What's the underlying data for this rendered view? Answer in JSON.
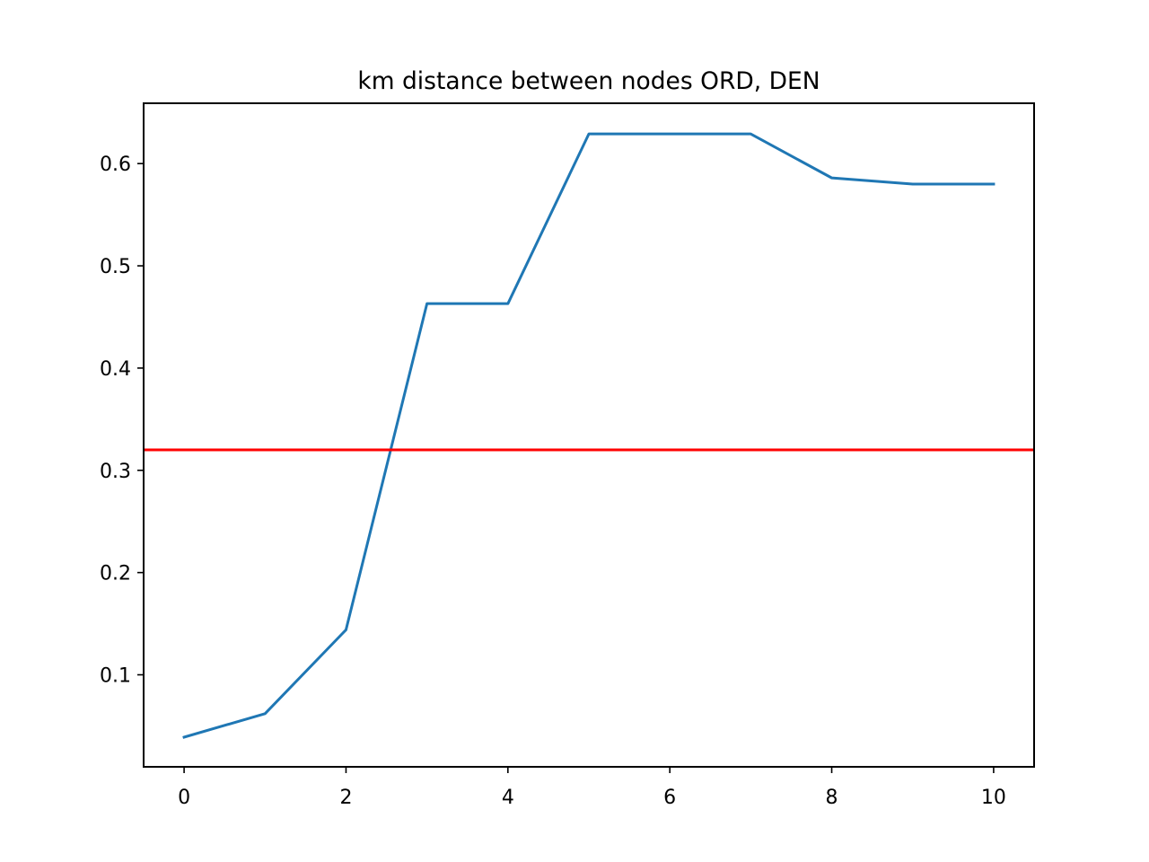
{
  "chart_data": {
    "type": "line",
    "title": "km distance between nodes ORD, DEN",
    "xlabel": "",
    "ylabel": "",
    "xlim": [
      -0.5,
      10.5
    ],
    "ylim": [
      0.01,
      0.659
    ],
    "x_ticks": [
      0,
      2,
      4,
      6,
      8,
      10
    ],
    "x_tick_labels": [
      "0",
      "2",
      "4",
      "6",
      "8",
      "10"
    ],
    "y_ticks": [
      0.1,
      0.2,
      0.3,
      0.4,
      0.5,
      0.6
    ],
    "y_tick_labels": [
      "0.1",
      "0.2",
      "0.3",
      "0.4",
      "0.5",
      "0.6"
    ],
    "grid": false,
    "legend": "none",
    "series": [
      {
        "color": "#1f77b4",
        "x": [
          0,
          1,
          2,
          3,
          4,
          5,
          6,
          7,
          8,
          9,
          10
        ],
        "y": [
          0.039,
          0.062,
          0.144,
          0.463,
          0.463,
          0.629,
          0.629,
          0.629,
          0.586,
          0.58,
          0.58
        ]
      }
    ],
    "reference_lines": [
      {
        "orientation": "horizontal",
        "y": 0.32,
        "color": "#ff0000"
      }
    ]
  }
}
